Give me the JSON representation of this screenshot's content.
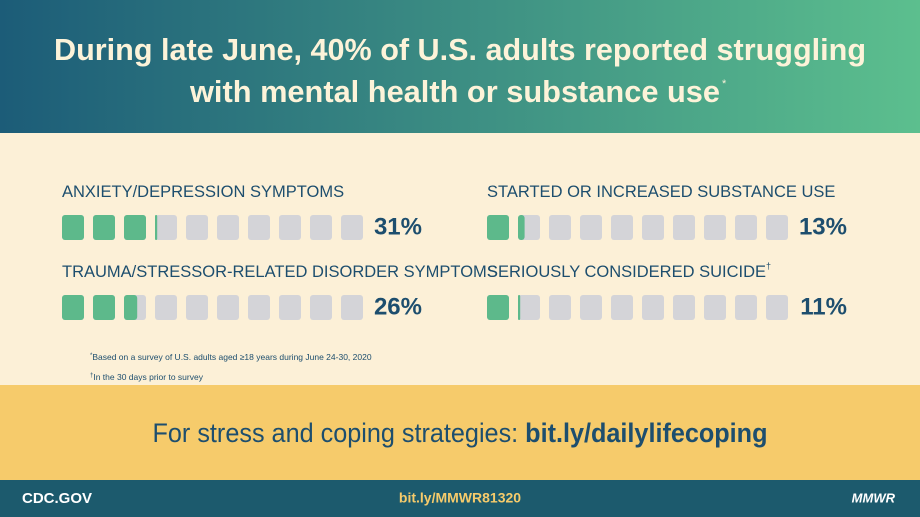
{
  "chart_data": {
    "type": "waffle",
    "title_lines": [
      "During late June, 40% of U.S. adults reported struggling",
      "with mental health or substance use"
    ],
    "title_mark": "*",
    "categories": [
      "ANXIETY/DEPRESSION SYMPTOMS",
      "STARTED OR INCREASED SUBSTANCE USE",
      "TRAUMA/STRESSOR-RELATED DISORDER SYMPTOMS",
      "SERIOUSLY CONSIDERED SUICIDE"
    ],
    "category_marks": [
      null,
      null,
      null,
      "†"
    ],
    "values": [
      31,
      13,
      26,
      11
    ],
    "value_labels": [
      "31%",
      "13%",
      "26%",
      "11%"
    ],
    "color": "#5db98b",
    "empty_color": "#d4d4d8",
    "squares": 10,
    "max": 100
  },
  "footnotes": [
    {
      "mark": "*",
      "text": "Based on a survey of U.S. adults aged  ≥18 years during June 24-30, 2020"
    },
    {
      "mark": "†",
      "text": "In the 30 days prior to survey"
    }
  ],
  "cta": {
    "text": "For stress and coping strategies: ",
    "link": "bit.ly/dailylifecoping"
  },
  "footer": {
    "left": "CDC.GOV",
    "center": "bit.ly/MMWR81320",
    "right": "MMWR"
  }
}
